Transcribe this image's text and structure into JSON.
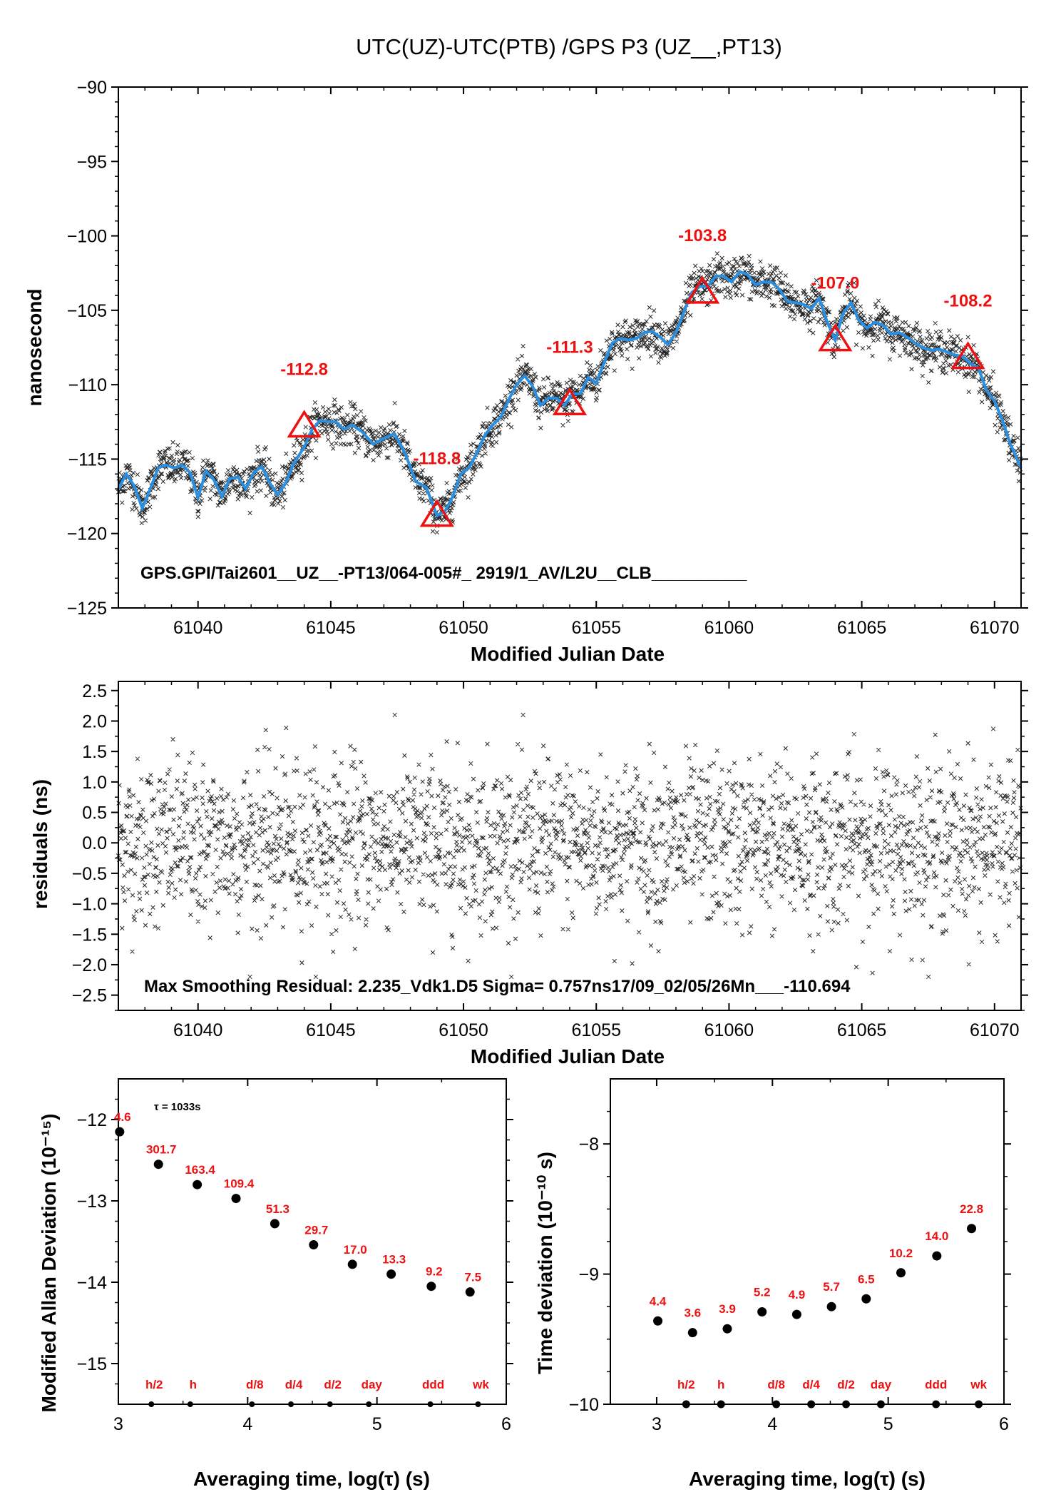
{
  "title": "UTC(UZ)-UTC(PTB)  /GPS  P3  (UZ__,PT13)",
  "colors": {
    "fit_line": "#2a8fe0",
    "marker": "#ee1111",
    "points": "#000000"
  },
  "chart_data": [
    {
      "type": "scatter",
      "name": "time-series",
      "xlabel": "Modified Julian Date",
      "ylabel": "nanosecond",
      "xlim": [
        61037,
        61071
      ],
      "ylim": [
        -125,
        -90
      ],
      "xticks": [
        61040,
        61045,
        61050,
        61055,
        61060,
        61065,
        61070
      ],
      "yticks": [
        -125,
        -120,
        -115,
        -110,
        -105,
        -100,
        -95,
        -90
      ],
      "info_text": "GPS.GPI/Tai2601__UZ__-PT13/064-005#_  2919/1_AV/L2U__CLB__________",
      "fit": {
        "x": [
          61037.0,
          61037.3,
          61037.6,
          61037.9,
          61038.2,
          61038.5,
          61038.8,
          61039.1,
          61039.4,
          61039.7,
          61040.0,
          61040.3,
          61040.6,
          61040.9,
          61041.2,
          61041.5,
          61041.8,
          61042.1,
          61042.4,
          61042.7,
          61043.0,
          61043.3,
          61043.6,
          61044.0,
          61044.3,
          61044.6,
          61044.9,
          61045.2,
          61045.5,
          61045.8,
          61046.2,
          61046.6,
          61047.0,
          61047.4,
          61047.8,
          61048.2,
          61048.6,
          61049.0,
          61049.3,
          61049.6,
          61049.9,
          61050.2,
          61050.5,
          61050.8,
          61051.1,
          61051.4,
          61051.7,
          61052.0,
          61052.3,
          61052.6,
          61052.9,
          61053.2,
          61053.5,
          61053.8,
          61054.1,
          61054.4,
          61054.7,
          61055.0,
          61055.3,
          61055.6,
          61055.9,
          61056.2,
          61056.5,
          61056.8,
          61057.1,
          61057.4,
          61057.7,
          61058.0,
          61058.3,
          61058.6,
          61058.9,
          61059.2,
          61059.5,
          61059.8,
          61060.1,
          61060.4,
          61060.7,
          61061.0,
          61061.3,
          61061.6,
          61061.9,
          61062.2,
          61062.5,
          61062.8,
          61063.1,
          61063.4,
          61063.7,
          61064.0,
          61064.3,
          61064.6,
          61064.9,
          61065.2,
          61065.5,
          61065.8,
          61066.1,
          61066.4,
          61066.7,
          61067.0,
          61067.3,
          61067.6,
          61067.9,
          61068.2,
          61068.5,
          61068.8,
          61069.1,
          61069.4,
          61069.7,
          61070.0,
          61070.3,
          61070.6,
          61071.0
        ],
        "y": [
          -117.0,
          -116.0,
          -116.8,
          -118.3,
          -117.0,
          -115.6,
          -115.4,
          -115.6,
          -115.4,
          -115.9,
          -117.6,
          -115.8,
          -116.4,
          -117.5,
          -116.3,
          -116.2,
          -117.0,
          -115.9,
          -115.5,
          -116.6,
          -117.4,
          -116.6,
          -115.3,
          -114.2,
          -113.0,
          -112.4,
          -112.5,
          -112.5,
          -113.0,
          -112.7,
          -113.2,
          -114.0,
          -113.6,
          -113.3,
          -114.6,
          -116.5,
          -116.9,
          -118.8,
          -118.5,
          -117.5,
          -116.0,
          -115.6,
          -114.6,
          -113.4,
          -112.7,
          -112.2,
          -111.0,
          -110.0,
          -109.4,
          -110.1,
          -111.4,
          -110.9,
          -110.9,
          -111.4,
          -110.6,
          -110.6,
          -109.5,
          -109.9,
          -108.5,
          -107.2,
          -106.9,
          -107.0,
          -106.9,
          -106.5,
          -106.4,
          -106.8,
          -107.3,
          -106.5,
          -105.1,
          -103.8,
          -103.4,
          -103.4,
          -102.7,
          -102.7,
          -103.1,
          -102.4,
          -102.6,
          -103.3,
          -103.1,
          -103.1,
          -103.6,
          -104.4,
          -104.5,
          -104.6,
          -104.9,
          -104.2,
          -105.8,
          -107.0,
          -105.2,
          -104.5,
          -105.7,
          -106.2,
          -105.8,
          -106.0,
          -106.6,
          -106.5,
          -106.8,
          -107.2,
          -107.5,
          -107.7,
          -107.6,
          -107.8,
          -108.0,
          -108.1,
          -108.6,
          -108.9,
          -110.4,
          -111.1,
          -112.4,
          -114.0,
          -115.6
        ]
      },
      "markers": [
        {
          "x": 61044,
          "y": -112.8,
          "label": "-112.8"
        },
        {
          "x": 61049,
          "y": -118.8,
          "label": "-118.8"
        },
        {
          "x": 61054,
          "y": -111.3,
          "label": "-111.3"
        },
        {
          "x": 61059,
          "y": -103.8,
          "label": "-103.8"
        },
        {
          "x": 61064,
          "y": -107.0,
          "label": "-107.0"
        },
        {
          "x": 61069,
          "y": -108.2,
          "label": "-108.2"
        }
      ]
    },
    {
      "type": "scatter",
      "name": "residuals",
      "xlabel": "Modified Julian Date",
      "ylabel": "residuals (ns)",
      "xlim": [
        61037,
        61071
      ],
      "ylim": [
        -2.75,
        2.65
      ],
      "xticks": [
        61040,
        61045,
        61050,
        61055,
        61060,
        61065,
        61070
      ],
      "yticks": [
        -2.5,
        -2.0,
        -1.5,
        -1.0,
        -0.5,
        0.0,
        0.5,
        1.0,
        1.5,
        2.0,
        2.5
      ],
      "ytick_labels": [
        "-2.5",
        "-2.0",
        "-1.5",
        "-1.0",
        "-0.5",
        "0.0",
        "0.5",
        "1.0",
        "1.5",
        "2.0",
        "2.5"
      ],
      "info_text": "Max Smoothing Residual: 2.235_Vdk1.D5  Sigma= 0.757ns17/09_02/05/26Mn___-110.694"
    },
    {
      "type": "scatter",
      "name": "modified-allan-deviation",
      "xlabel": "Averaging time, log(τ) (s)",
      "ylabel": "Modified Allan Deviation (10⁻¹⁵)",
      "xlim": [
        3,
        6
      ],
      "ylim": [
        -15.5,
        -11.5
      ],
      "xticks": [
        3,
        4,
        5,
        6
      ],
      "yticks": [
        -15,
        -14,
        -13,
        -12
      ],
      "tau_note": "τ = 1033s",
      "x": [
        3.01,
        3.31,
        3.61,
        3.91,
        4.21,
        4.51,
        4.81,
        5.11,
        5.42,
        5.72
      ],
      "y": [
        -12.15,
        -12.55,
        -12.8,
        -12.97,
        -13.28,
        -13.54,
        -13.78,
        -13.9,
        -14.05,
        -14.12
      ],
      "point_labels": [
        "4.6",
        "301.7",
        "163.4",
        "109.4",
        "51.3",
        "29.7",
        "17.0",
        "13.3",
        "9.2",
        "7.5"
      ],
      "time_markers": [
        {
          "x": 3.255,
          "label": "h/2"
        },
        {
          "x": 3.556,
          "label": "h"
        },
        {
          "x": 4.033,
          "label": "d/8"
        },
        {
          "x": 4.335,
          "label": "d/4"
        },
        {
          "x": 4.636,
          "label": "d/2"
        },
        {
          "x": 4.937,
          "label": "day"
        },
        {
          "x": 5.413,
          "label": "ddd"
        },
        {
          "x": 5.782,
          "label": "wk"
        }
      ]
    },
    {
      "type": "scatter",
      "name": "time-deviation",
      "xlabel": "Averaging time, log(τ) (s)",
      "ylabel": "Time deviation (10⁻¹⁰ s)",
      "xlim": [
        2.6,
        6.0
      ],
      "ylim": [
        -10,
        -7.5
      ],
      "xticks": [
        3,
        4,
        5,
        6
      ],
      "yticks": [
        -10,
        -9,
        -8
      ],
      "x": [
        3.01,
        3.31,
        3.61,
        3.91,
        4.21,
        4.51,
        4.81,
        5.11,
        5.42,
        5.72
      ],
      "y": [
        -9.36,
        -9.45,
        -9.42,
        -9.29,
        -9.31,
        -9.25,
        -9.19,
        -8.99,
        -8.86,
        -8.65
      ],
      "point_labels": [
        "4.4",
        "3.6",
        "3.9",
        "5.2",
        "4.9",
        "5.7",
        "6.5",
        "10.2",
        "14.0",
        "22.8"
      ],
      "time_markers": [
        {
          "x": 3.255,
          "label": "h/2"
        },
        {
          "x": 3.556,
          "label": "h"
        },
        {
          "x": 4.033,
          "label": "d/8"
        },
        {
          "x": 4.335,
          "label": "d/4"
        },
        {
          "x": 4.636,
          "label": "d/2"
        },
        {
          "x": 4.937,
          "label": "day"
        },
        {
          "x": 5.413,
          "label": "ddd"
        },
        {
          "x": 5.782,
          "label": "wk"
        }
      ]
    }
  ]
}
